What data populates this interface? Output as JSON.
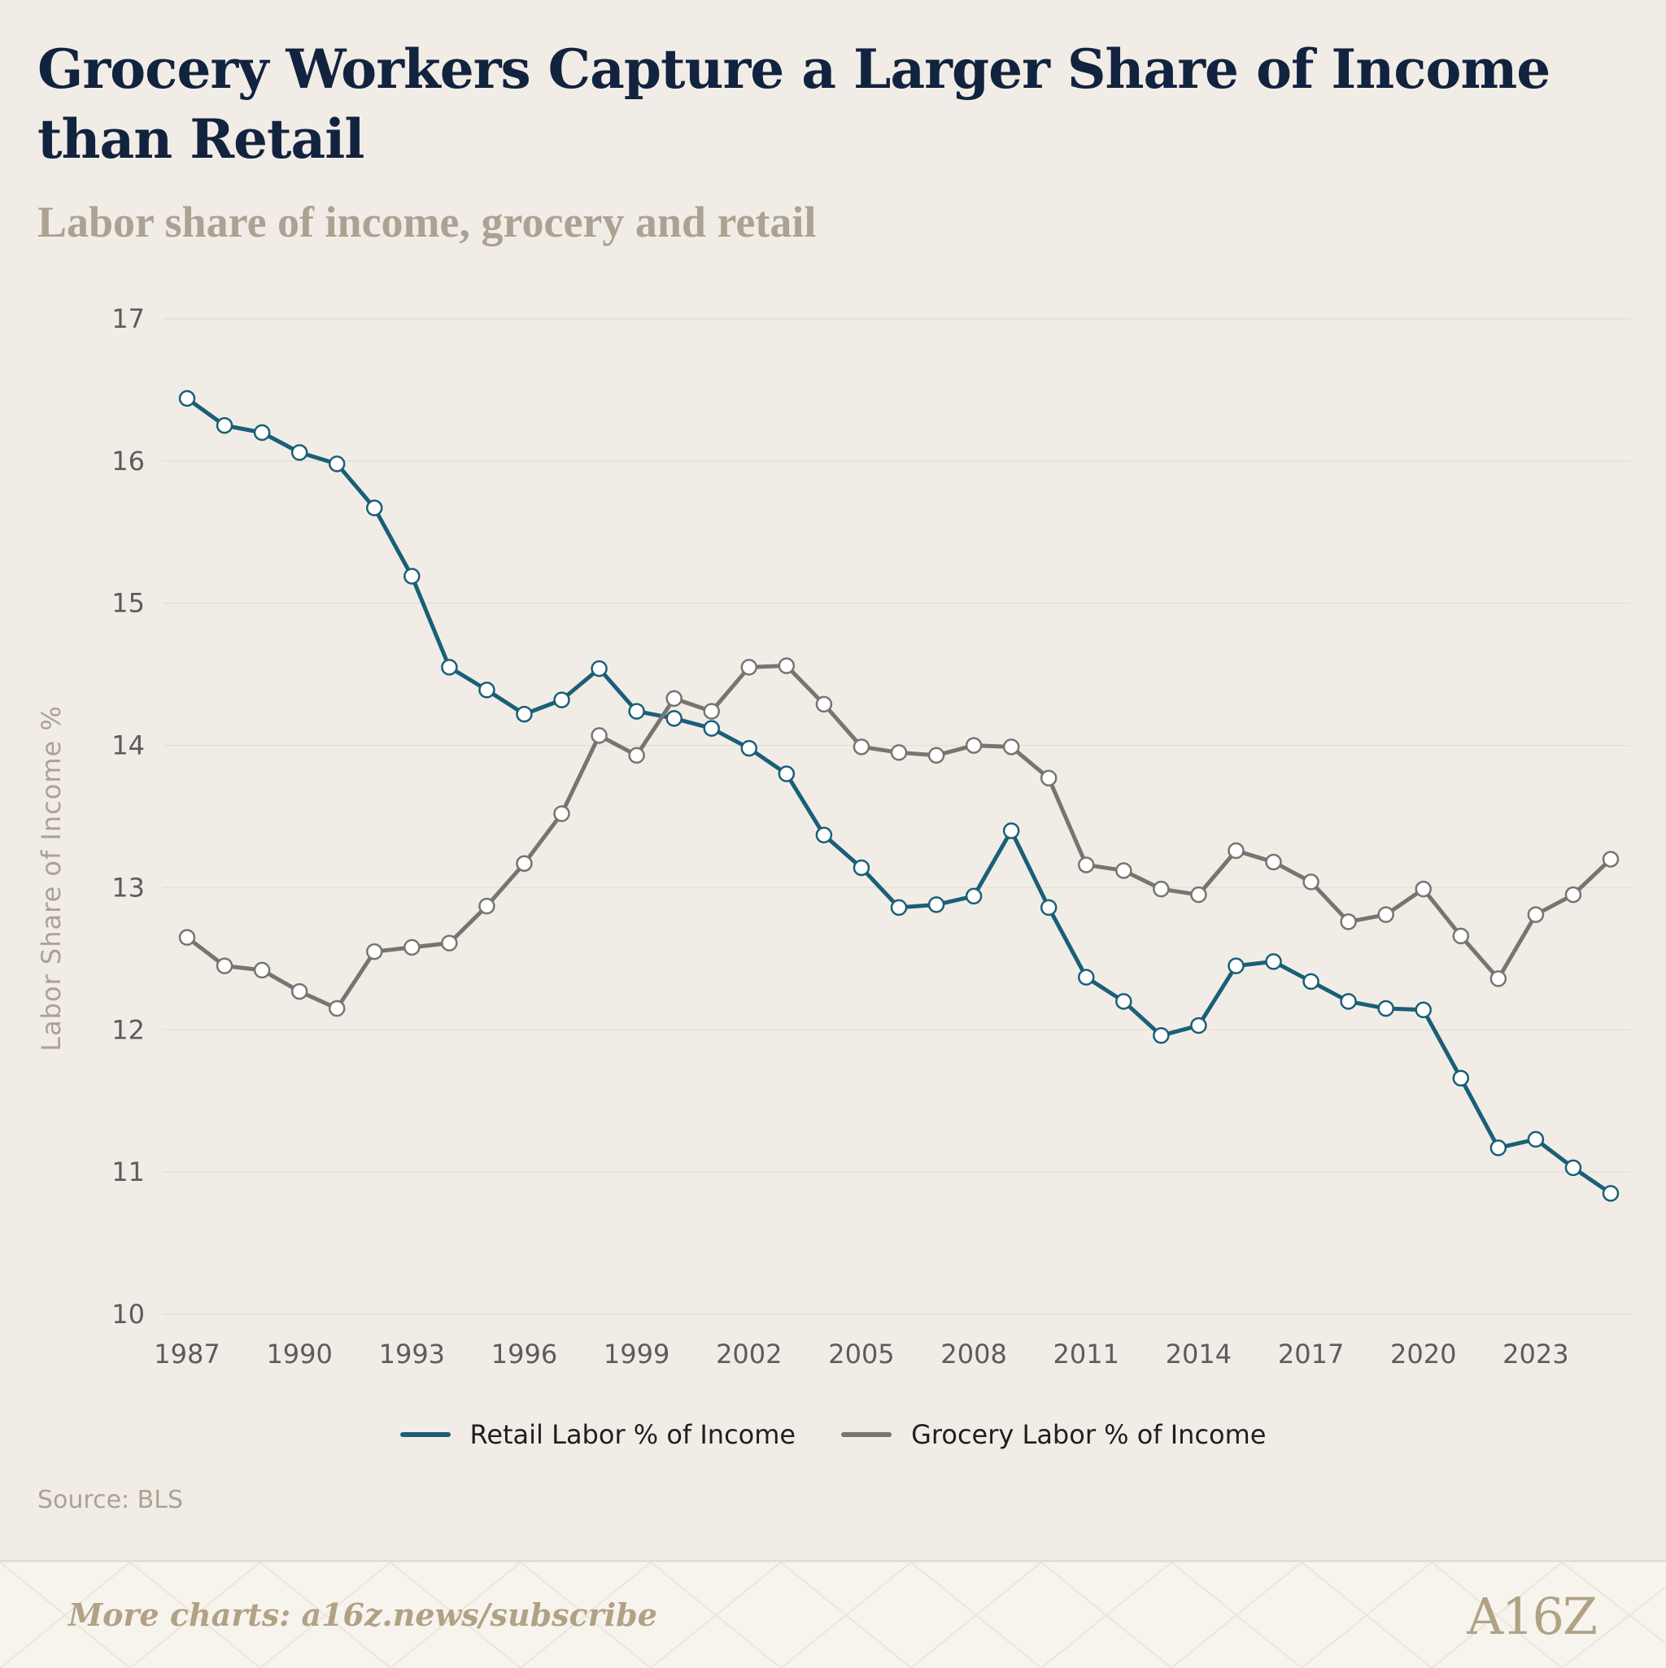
{
  "header": {
    "title": "Grocery Workers Capture a Larger Share of Income than Retail",
    "subtitle": "Labor share of income, grocery and retail"
  },
  "source": "Source: BLS",
  "footer": {
    "more_charts": "More charts: a16z.news/subscribe",
    "logo_text": "A16Z"
  },
  "colors": {
    "retail": "#1a5f78",
    "grocery": "#777570",
    "background": "#f1ede6",
    "title": "#12233f"
  },
  "chart_data": {
    "type": "line",
    "title": "Grocery Workers Capture a Larger Share of Income than Retail",
    "subtitle": "Labor share of income, grocery and retail",
    "xlabel": "",
    "ylabel": "Labor Share of Income %",
    "ylim": [
      10,
      17
    ],
    "xlim": [
      1987,
      2025
    ],
    "yticks": [
      10,
      11,
      12,
      13,
      14,
      15,
      16,
      17
    ],
    "xticks": [
      1987,
      1990,
      1993,
      1996,
      1999,
      2002,
      2005,
      2008,
      2011,
      2014,
      2017,
      2020,
      2023
    ],
    "grid": true,
    "legend_position": "bottom-center",
    "x": [
      1987,
      1988,
      1989,
      1990,
      1991,
      1992,
      1993,
      1994,
      1995,
      1996,
      1997,
      1998,
      1999,
      2000,
      2001,
      2002,
      2003,
      2004,
      2005,
      2006,
      2007,
      2008,
      2009,
      2010,
      2011,
      2012,
      2013,
      2014,
      2015,
      2016,
      2017,
      2018,
      2019,
      2020,
      2021,
      2022,
      2023,
      2024,
      2025
    ],
    "series": [
      {
        "name": "Retail Labor % of Income",
        "color": "#1a5f78",
        "values": [
          16.44,
          16.25,
          16.2,
          16.06,
          15.98,
          15.67,
          15.19,
          14.55,
          14.39,
          14.22,
          14.32,
          14.54,
          14.24,
          14.19,
          14.12,
          13.98,
          13.8,
          13.37,
          13.14,
          12.86,
          12.88,
          12.94,
          13.4,
          12.86,
          12.37,
          12.2,
          11.96,
          12.03,
          12.45,
          12.48,
          12.34,
          12.2,
          12.15,
          12.14,
          11.66,
          11.17,
          11.23,
          11.03,
          10.85
        ]
      },
      {
        "name": "Grocery Labor % of Income",
        "color": "#777570",
        "values": [
          12.65,
          12.45,
          12.42,
          12.27,
          12.15,
          12.55,
          12.58,
          12.61,
          12.87,
          13.17,
          13.52,
          14.07,
          13.93,
          14.33,
          14.24,
          14.55,
          14.56,
          14.29,
          13.99,
          13.95,
          13.93,
          14.0,
          13.99,
          13.77,
          13.16,
          13.12,
          12.99,
          12.95,
          13.26,
          13.18,
          13.04,
          12.76,
          12.81,
          12.99,
          12.66,
          12.36,
          12.81,
          12.95,
          13.2
        ]
      }
    ]
  }
}
